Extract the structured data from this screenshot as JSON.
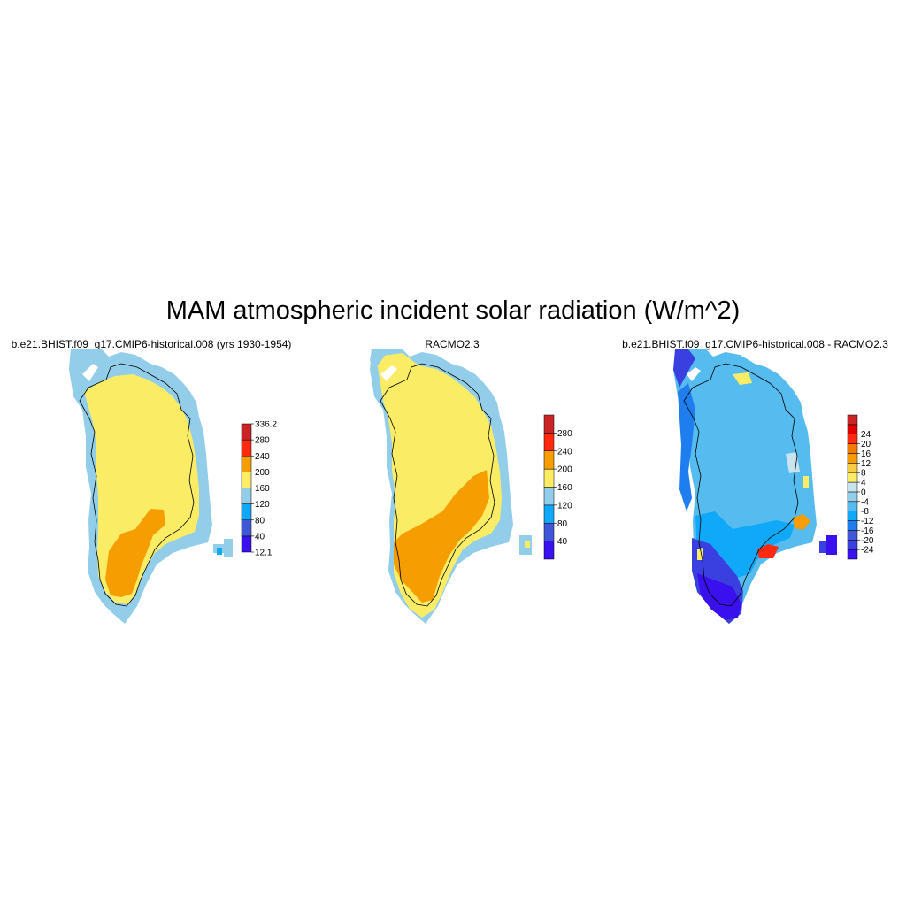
{
  "title": "MAM atmospheric incident solar radiation (W/m^2)",
  "panels": [
    {
      "title": "b.e21.BHIST.f09_g17.CMIP6-historical.008 (yrs 1930-1954)",
      "colorbar": {
        "colors": [
          "#3a10ee",
          "#4058d8",
          "#10a8f8",
          "#92cdea",
          "#fbec66",
          "#f59d01",
          "#ff2a10",
          "#cb2424"
        ],
        "labels": [
          "12.1",
          "40",
          "80",
          "120",
          "160",
          "200",
          "240",
          "280",
          "336.2"
        ],
        "label_mode": "edges"
      }
    },
    {
      "title": "RACMO2.3",
      "colorbar": {
        "colors": [
          "#3a10ee",
          "#4058d8",
          "#10a8f8",
          "#92cdea",
          "#fbec66",
          "#f59d01",
          "#ff2a10",
          "#cb2424"
        ],
        "labels": [
          "40",
          "80",
          "120",
          "160",
          "200",
          "240",
          "280"
        ],
        "label_mode": "interior"
      }
    },
    {
      "title": "b.e21.BHIST.f09_g17.CMIP6-historical.008 - RACMO2.3",
      "colorbar": {
        "colors": [
          "#3a10ee",
          "#3a3fe0",
          "#4058d8",
          "#1e7ef0",
          "#10a8f8",
          "#56bbee",
          "#92cdea",
          "#c8e4f0",
          "#fbec66",
          "#f8cd40",
          "#f59d01",
          "#f57a00",
          "#ff2a10",
          "#e00000",
          "#cb2424"
        ],
        "labels": [
          "-24",
          "-20",
          "-16",
          "-12",
          "-8",
          "-4",
          "0",
          "4",
          "8",
          "12",
          "16",
          "20",
          "24"
        ],
        "label_mode": "interior"
      }
    }
  ]
}
